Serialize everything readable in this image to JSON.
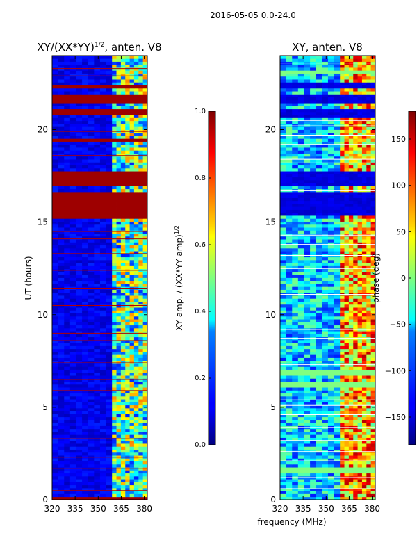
{
  "suptitle": "2016-05-05 0.0-24.0",
  "chart_data": [
    {
      "type": "heatmap",
      "title": "XY/(XX*YY)",
      "title_sup": "1/2",
      "title_suffix": ", anten. V8",
      "xlabel": "",
      "ylabel": "UT (hours)",
      "xlim": [
        320,
        382
      ],
      "ylim": [
        0,
        24
      ],
      "xticks": [
        320,
        335,
        350,
        365,
        380
      ],
      "xtick_labels": [
        "320",
        "335",
        "350",
        "365",
        "380"
      ],
      "yticks": [
        0,
        5,
        10,
        15,
        20
      ],
      "ytick_labels": [
        "0",
        "5",
        "10",
        "15",
        "20"
      ],
      "band_edge_mhz": 359,
      "colorbar": {
        "label": "XY amp. / (XX*YY amp)",
        "label_sup": "1/2",
        "range": [
          0.0,
          1.0
        ],
        "ticks": [
          0.0,
          0.2,
          0.4,
          0.6,
          0.8,
          1.0
        ],
        "tick_labels": [
          "0.0",
          "0.2",
          "0.4",
          "0.6",
          "0.8",
          "1.0"
        ],
        "colormap": "jet"
      },
      "saturated_intervals_ut": [
        [
          15.25,
          16.65
        ],
        [
          16.95,
          17.75
        ],
        [
          21.5,
          21.9
        ],
        [
          20.8,
          21.05
        ],
        [
          22.2,
          22.45
        ],
        [
          19.4,
          19.55
        ],
        [
          0.0,
          0.08
        ]
      ],
      "thin_high_lines_ut": [
        0.5,
        1.7,
        2.3,
        3.3,
        4.9,
        5.9,
        6.5,
        7.4,
        8.6,
        9.0,
        10.5,
        11.4,
        12.4,
        12.9,
        13.3,
        14.1,
        14.5,
        18.6,
        19.9,
        20.3,
        22.9,
        23.3
      ]
    },
    {
      "type": "heatmap",
      "title": "XY, anten. V8",
      "xlabel": "frequency (MHz)",
      "ylabel": "",
      "xlim": [
        320,
        382
      ],
      "ylim": [
        0,
        24
      ],
      "xticks": [
        320,
        335,
        350,
        365,
        380
      ],
      "xtick_labels": [
        "320",
        "335",
        "350",
        "365",
        "380"
      ],
      "yticks": [
        0,
        5,
        10,
        15,
        20
      ],
      "ytick_labels": [
        "0",
        "5",
        "10",
        "15",
        "20"
      ],
      "band_edge_mhz": 359,
      "colorbar": {
        "label": "phase (deg)",
        "range": [
          -180,
          180
        ],
        "ticks": [
          -150,
          -100,
          -50,
          0,
          50,
          100,
          150
        ],
        "tick_labels": [
          "−150",
          "−100",
          "−50",
          "0",
          "50",
          "100",
          "150"
        ],
        "colormap": "jet"
      },
      "dark_intervals_ut": [
        [
          15.3,
          16.6
        ],
        [
          16.9,
          17.8
        ],
        [
          20.7,
          21.1
        ],
        [
          21.4,
          21.9
        ],
        [
          22.2,
          22.5
        ]
      ],
      "flat_zero_intervals_ut": [
        [
          1.45,
          1.75
        ],
        [
          6.1,
          6.4
        ],
        [
          6.8,
          7.0
        ],
        [
          22.8,
          22.95
        ],
        [
          23.05,
          23.2
        ]
      ],
      "thin_white_lines_ut": [
        0.6,
        1.2,
        2.1,
        2.6,
        3.2,
        3.9,
        4.6,
        5.1,
        5.4,
        7.3,
        8.7,
        9.2,
        11.1,
        12.5,
        13.2,
        13.8,
        14.3,
        16.7,
        18.2,
        18.4,
        18.8,
        19.2,
        19.7,
        20.2,
        20.5,
        23.6
      ]
    }
  ]
}
